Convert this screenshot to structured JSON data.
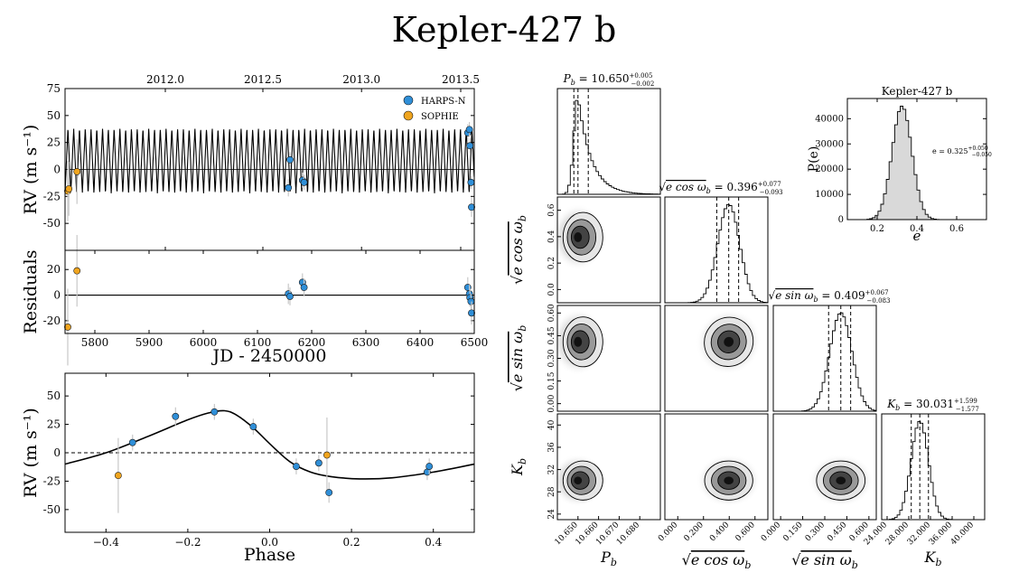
{
  "figure": {
    "title": "Kepler-427 b"
  },
  "colors": {
    "harps": "#2f8fd8",
    "sophie": "#f0a51f",
    "axis": "#000000",
    "errorbar": "#c8c8c8",
    "hist_fill": "#d9d9d9"
  },
  "chart_data": [
    {
      "id": "rv_time",
      "type": "line",
      "ylabel": "RV (m s⁻¹)",
      "xlim": [
        5745,
        6500
      ],
      "ylim": [
        -75,
        75
      ],
      "yticks": [
        -50,
        -25,
        0,
        25,
        50,
        75
      ],
      "top_axis": {
        "ticks": [
          {
            "value": 5930,
            "label": "2012.0"
          },
          {
            "value": 6110,
            "label": "2012.5"
          },
          {
            "value": 6292,
            "label": "2013.0"
          },
          {
            "value": 6475,
            "label": "2013.5"
          }
        ]
      },
      "model": {
        "period": 10.65,
        "max": 38,
        "min": -22
      },
      "legend": [
        {
          "name": "HARPS-N",
          "color": "#2f8fd8"
        },
        {
          "name": "SOPHIE",
          "color": "#f0a51f"
        }
      ],
      "legend_loc": "top-right",
      "series": [
        {
          "name": "SOPHIE",
          "points": [
            [
              5750,
              -20,
              28
            ],
            [
              5752,
              -18,
              25
            ],
            [
              5767,
              -2,
              30
            ]
          ]
        },
        {
          "name": "HARPS-N",
          "points": [
            [
              6157,
              -17,
              8
            ],
            [
              6160,
              9,
              7
            ],
            [
              6183,
              -10,
              7
            ],
            [
              6186,
              -12,
              7
            ],
            [
              6488,
              34,
              8
            ],
            [
              6491,
              37,
              7
            ],
            [
              6492,
              22,
              7
            ],
            [
              6494,
              -12,
              6
            ],
            [
              6495,
              -35,
              9
            ]
          ]
        }
      ]
    },
    {
      "id": "residuals",
      "type": "scatter",
      "ylabel": "Residuals",
      "xlabel": "JD - 2450000",
      "xlim": [
        5745,
        6500
      ],
      "ylim": [
        -30,
        35
      ],
      "yticks": [
        -20,
        0,
        20
      ],
      "xticks": [
        5800,
        5900,
        6000,
        6100,
        6200,
        6300,
        6400,
        6500
      ],
      "series": [
        {
          "name": "SOPHIE",
          "points": [
            [
              5750,
              -25,
              30
            ],
            [
              5767,
              19,
              28
            ]
          ]
        },
        {
          "name": "HARPS-N",
          "points": [
            [
              6157,
              1,
              8
            ],
            [
              6160,
              -1,
              7
            ],
            [
              6183,
              10,
              7
            ],
            [
              6186,
              6,
              7
            ],
            [
              6488,
              6,
              8
            ],
            [
              6491,
              1,
              7
            ],
            [
              6492,
              -2,
              7
            ],
            [
              6494,
              -5,
              6
            ],
            [
              6495,
              -14,
              9
            ]
          ]
        }
      ]
    },
    {
      "id": "phase",
      "type": "line",
      "xlabel": "Phase",
      "ylabel": "RV (m s⁻¹)",
      "xlim": [
        -0.5,
        0.5
      ],
      "ylim": [
        -70,
        70
      ],
      "xticks": [
        -0.4,
        -0.2,
        0.0,
        0.2,
        0.4
      ],
      "yticks": [
        -50,
        -25,
        0,
        25,
        50
      ],
      "model": [
        [
          -0.5,
          -10
        ],
        [
          -0.4,
          0
        ],
        [
          -0.3,
          14
        ],
        [
          -0.2,
          29
        ],
        [
          -0.15,
          35
        ],
        [
          -0.11,
          37
        ],
        [
          -0.08,
          33
        ],
        [
          -0.04,
          22
        ],
        [
          0.0,
          8
        ],
        [
          0.05,
          -8
        ],
        [
          0.1,
          -17
        ],
        [
          0.15,
          -21
        ],
        [
          0.22,
          -23
        ],
        [
          0.3,
          -22
        ],
        [
          0.4,
          -17
        ],
        [
          0.5,
          -10
        ]
      ],
      "series": [
        {
          "name": "SOPHIE",
          "points": [
            [
              -0.37,
              -20,
              33
            ],
            [
              0.14,
              -2,
              33
            ]
          ]
        },
        {
          "name": "HARPS-N",
          "points": [
            [
              -0.335,
              9,
              7
            ],
            [
              -0.23,
              32,
              8
            ],
            [
              -0.135,
              36,
              7
            ],
            [
              -0.04,
              23,
              7
            ],
            [
              0.065,
              -12,
              7
            ],
            [
              0.12,
              -9,
              7
            ],
            [
              0.145,
              -35,
              9
            ],
            [
              0.385,
              -17,
              7
            ],
            [
              0.39,
              -12,
              7
            ]
          ]
        }
      ]
    },
    {
      "id": "corner",
      "type": "heatmap",
      "params": [
        {
          "label": "P_b",
          "range": [
            10.64,
            10.69
          ],
          "ticks": [
            "10.650",
            "10.660",
            "10.670",
            "10.680"
          ],
          "tick_values": [
            10.65,
            10.66,
            10.67,
            10.68
          ],
          "peak": 10.65,
          "spread": 0.004,
          "skew": "right",
          "quantiles": [
            10.648,
            10.65,
            10.655
          ],
          "header": "P_b = 10.650 (+0.005 −0.002)"
        },
        {
          "label": "√e cos ω_b",
          "range": [
            -0.1,
            0.7
          ],
          "ticks": [
            "0.0",
            "0.2",
            "0.4",
            "0.6"
          ],
          "tick_values": [
            0.0,
            0.2,
            0.4,
            0.6
          ],
          "peak": 0.396,
          "spread": 0.085,
          "quantiles": [
            0.303,
            0.396,
            0.473
          ],
          "header": "√e cos ω_b = 0.396 (+0.077 −0.093)"
        },
        {
          "label": "√e sin ω_b",
          "range": [
            -0.05,
            0.65
          ],
          "ticks": [
            "0.00",
            "0.15",
            "0.30",
            "0.45",
            "0.60"
          ],
          "tick_values": [
            0.0,
            0.15,
            0.3,
            0.45,
            0.6
          ],
          "peak": 0.409,
          "spread": 0.075,
          "quantiles": [
            0.326,
            0.409,
            0.476
          ],
          "header": "√e sin ω_b = 0.409 (+0.067 −0.083)"
        },
        {
          "label": "K_b",
          "range": [
            23,
            42
          ],
          "ticks": [
            "24",
            "28",
            "32",
            "36",
            "40"
          ],
          "tick_values": [
            24,
            28,
            32,
            36,
            40
          ],
          "peak": 30.031,
          "spread": 1.6,
          "quantiles": [
            28.454,
            30.031,
            31.63
          ],
          "header": "K_b = 30.031 (+1.599 −1.577)"
        }
      ],
      "bottom_tick_labels": [
        [
          "10.650",
          "10.660",
          "10.670",
          "10.680"
        ],
        [
          "0.000",
          "0.200",
          "0.400",
          "0.600"
        ],
        [
          "0.000",
          "0.150",
          "0.300",
          "0.450",
          "0.600"
        ],
        [
          "24.000",
          "28.000",
          "32.000",
          "36.000",
          "40.000"
        ]
      ],
      "bottom_tick_values": [
        [
          10.65,
          10.66,
          10.67,
          10.68
        ],
        [
          0.0,
          0.2,
          0.4,
          0.6
        ],
        [
          0.0,
          0.15,
          0.3,
          0.45,
          0.6
        ],
        [
          24,
          28,
          32,
          36,
          40
        ]
      ]
    },
    {
      "id": "eccentricity",
      "type": "bar",
      "title": "Kepler-427 b",
      "xlabel": "e",
      "ylabel": "P(e)",
      "xlim": [
        0.05,
        0.75
      ],
      "ylim": [
        0,
        48000
      ],
      "xticks": [
        0.2,
        0.4,
        0.6
      ],
      "yticks": [
        0,
        10000,
        20000,
        30000,
        40000
      ],
      "peak": 0.325,
      "spread": 0.05,
      "max_count": 45000,
      "annotation": "e = 0.325 (+0.050 −0.050)",
      "annotation_loc": "right"
    }
  ],
  "headers": {
    "rv_ylabel_main": "RV (m s",
    "rv_ylabel_exp": "−1",
    "rv_ylabel_end": ")",
    "p_header": {
      "lhs": "P",
      "sub": "b",
      "val": " = 10.650",
      "up": "+0.005",
      "dn": "−0.002"
    },
    "ecos_header": {
      "pre": "e cos ω",
      "sub": "b",
      "val": " = 0.396",
      "up": "+0.077",
      "dn": "−0.093"
    },
    "esin_header": {
      "pre": "e sin ω",
      "sub": "b",
      "val": " = 0.409",
      "up": "+0.067",
      "dn": "−0.083"
    },
    "k_header": {
      "lhs": "K",
      "sub": "b",
      "val": " = 30.031",
      "up": "+1.599",
      "dn": "−1.577"
    },
    "e_annot": {
      "lhs": "e = 0.325",
      "up": "+0.050",
      "dn": "−0.050"
    }
  }
}
